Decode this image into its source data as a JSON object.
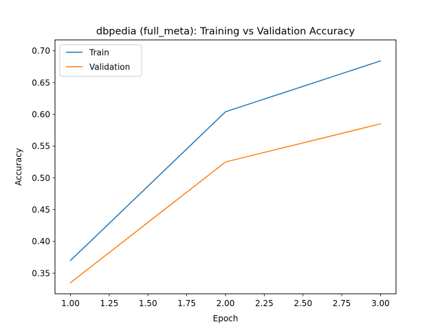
{
  "chart_data": {
    "type": "line",
    "title": "dbpedia (full_meta): Training vs Validation Accuracy",
    "xlabel": "Epoch",
    "ylabel": "Accuracy",
    "x": [
      1.0,
      2.0,
      3.0
    ],
    "xlim": [
      0.9,
      3.1
    ],
    "ylim": [
      0.3176,
      0.7171
    ],
    "xticks": [
      1.0,
      1.25,
      1.5,
      1.75,
      2.0,
      2.25,
      2.5,
      2.75,
      3.0
    ],
    "xtick_labels": [
      "1.00",
      "1.25",
      "1.50",
      "1.75",
      "2.00",
      "2.25",
      "2.50",
      "2.75",
      "3.00"
    ],
    "yticks": [
      0.35,
      0.4,
      0.45,
      0.5,
      0.55,
      0.6,
      0.65,
      0.7
    ],
    "ytick_labels": [
      "0.35",
      "0.40",
      "0.45",
      "0.50",
      "0.55",
      "0.60",
      "0.65",
      "0.70"
    ],
    "grid": false,
    "legend_position": "top-left",
    "series": [
      {
        "name": "Train",
        "values": [
          0.37,
          0.604,
          0.684
        ],
        "color": "#1f77b4"
      },
      {
        "name": "Validation",
        "values": [
          0.335,
          0.525,
          0.585
        ],
        "color": "#ff7f0e"
      }
    ]
  }
}
